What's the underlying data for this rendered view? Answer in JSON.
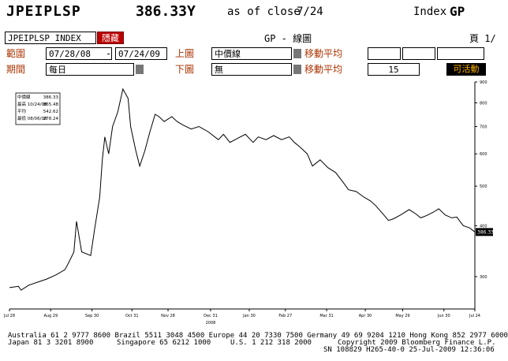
{
  "header": {
    "ticker": "JPEIPLSP",
    "price": "386.33Y",
    "as_of_label": "as of close",
    "date": "7/24",
    "index_label": "Index",
    "function_code": "GP"
  },
  "toolbar": {
    "security": "JPEIPLSP INDEX",
    "hide_label": "隱藏",
    "title": "GP - 線圖",
    "page": "頁 1/"
  },
  "controls": {
    "range_label": "範圍",
    "start_date": "07/28/08",
    "dash": "-",
    "end_date": "07/24/09",
    "upper_chart_label": "上圖",
    "upper_chart_value": "中價線",
    "moving_avg_label_1": "移動平均",
    "period_label": "期間",
    "period_value": "每日",
    "lower_chart_label": "下圖",
    "lower_chart_value": "無",
    "moving_avg_label_2": "移動平均",
    "moving_avg_value_2": "15",
    "activate_label": "可活動"
  },
  "legend": {
    "rows": [
      {
        "label": "中價線",
        "value": "386.33"
      },
      {
        "label": "最高 10/24/08",
        "value": "865.48"
      },
      {
        "label": "平均",
        "value": "542.62"
      },
      {
        "label": "最低 08/06/08",
        "value": "278.24"
      }
    ]
  },
  "chart_data": {
    "type": "line",
    "series": [
      {
        "values": [
          [
            "2008-07-28",
            282
          ],
          [
            "2008-08-04",
            284
          ],
          [
            "2008-08-06",
            278
          ],
          [
            "2008-08-12",
            286
          ],
          [
            "2008-08-19",
            291
          ],
          [
            "2008-08-26",
            296
          ],
          [
            "2008-09-02",
            303
          ],
          [
            "2008-09-09",
            312
          ],
          [
            "2008-09-12",
            325
          ],
          [
            "2008-09-16",
            345
          ],
          [
            "2008-09-18",
            410
          ],
          [
            "2008-09-22",
            345
          ],
          [
            "2008-09-29",
            338
          ],
          [
            "2008-10-02",
            392
          ],
          [
            "2008-10-06",
            470
          ],
          [
            "2008-10-08",
            580
          ],
          [
            "2008-10-10",
            660
          ],
          [
            "2008-10-13",
            600
          ],
          [
            "2008-10-16",
            700
          ],
          [
            "2008-10-20",
            760
          ],
          [
            "2008-10-24",
            865
          ],
          [
            "2008-10-28",
            820
          ],
          [
            "2008-10-30",
            700
          ],
          [
            "2008-11-03",
            610
          ],
          [
            "2008-11-06",
            560
          ],
          [
            "2008-11-10",
            610
          ],
          [
            "2008-11-14",
            680
          ],
          [
            "2008-11-18",
            750
          ],
          [
            "2008-11-21",
            740
          ],
          [
            "2008-11-25",
            720
          ],
          [
            "2008-12-01",
            740
          ],
          [
            "2008-12-05",
            720
          ],
          [
            "2008-12-10",
            705
          ],
          [
            "2008-12-16",
            690
          ],
          [
            "2008-12-22",
            700
          ],
          [
            "2008-12-29",
            680
          ],
          [
            "2009-01-06",
            650
          ],
          [
            "2009-01-10",
            670
          ],
          [
            "2009-01-15",
            640
          ],
          [
            "2009-01-21",
            655
          ],
          [
            "2009-01-27",
            670
          ],
          [
            "2009-02-02",
            640
          ],
          [
            "2009-02-06",
            660
          ],
          [
            "2009-02-12",
            650
          ],
          [
            "2009-02-18",
            665
          ],
          [
            "2009-02-24",
            650
          ],
          [
            "2009-03-02",
            660
          ],
          [
            "2009-03-06",
            640
          ],
          [
            "2009-03-10",
            625
          ],
          [
            "2009-03-16",
            600
          ],
          [
            "2009-03-20",
            560
          ],
          [
            "2009-03-26",
            580
          ],
          [
            "2009-04-01",
            555
          ],
          [
            "2009-04-07",
            540
          ],
          [
            "2009-04-13",
            510
          ],
          [
            "2009-04-17",
            490
          ],
          [
            "2009-04-23",
            485
          ],
          [
            "2009-04-29",
            470
          ],
          [
            "2009-05-04",
            460
          ],
          [
            "2009-05-08",
            448
          ],
          [
            "2009-05-13",
            430
          ],
          [
            "2009-05-18",
            412
          ],
          [
            "2009-05-22",
            416
          ],
          [
            "2009-05-28",
            426
          ],
          [
            "2009-06-03",
            438
          ],
          [
            "2009-06-08",
            428
          ],
          [
            "2009-06-12",
            418
          ],
          [
            "2009-06-17",
            424
          ],
          [
            "2009-06-22",
            432
          ],
          [
            "2009-06-26",
            440
          ],
          [
            "2009-07-01",
            425
          ],
          [
            "2009-07-06",
            418
          ],
          [
            "2009-07-10",
            420
          ],
          [
            "2009-07-15",
            400
          ],
          [
            "2009-07-20",
            395
          ],
          [
            "2009-07-24",
            386
          ]
        ]
      }
    ],
    "xlim": [
      "2008-07-28",
      "2009-07-24"
    ],
    "ylim": [
      250,
      900
    ],
    "y_scale": "log",
    "x_ticks": [
      {
        "date": "2008-07-28",
        "label": "Jul 28"
      },
      {
        "date": "2008-08-29",
        "label": "Aug 29"
      },
      {
        "date": "2008-09-30",
        "label": "Sep 30"
      },
      {
        "date": "2008-10-31",
        "label": "Oct 31"
      },
      {
        "date": "2008-11-28",
        "label": "Nov 28"
      },
      {
        "date": "2008-12-31",
        "label": "Dec 31"
      },
      {
        "date": "2009-01-30",
        "label": "Jan 30"
      },
      {
        "date": "2009-02-27",
        "label": "Feb 27"
      },
      {
        "date": "2009-03-31",
        "label": "Mar 31"
      },
      {
        "date": "2009-04-30",
        "label": "Apr 30"
      },
      {
        "date": "2009-05-29",
        "label": "May 29"
      },
      {
        "date": "2009-06-30",
        "label": "Jun 30"
      },
      {
        "date": "2009-07-24",
        "label": "Jul 24"
      }
    ],
    "year_label": "2008",
    "y_ticks": [
      {
        "v": 900,
        "label": "900"
      },
      {
        "v": 800,
        "label": "800"
      },
      {
        "v": 700,
        "label": "700"
      },
      {
        "v": 600,
        "label": "600"
      },
      {
        "v": 500,
        "label": "500"
      },
      {
        "v": 400,
        "label": "400"
      },
      {
        "v": 300,
        "label": "300"
      }
    ],
    "last_value_label": "386.33",
    "colors": {
      "line": "#000000",
      "tag_bg": "#000000",
      "tag_fg": "#ffffff"
    }
  },
  "footer": {
    "line1": "Australia 61 2 9777 8600 Brazil 5511 3048 4500 Europe 44 20 7330 7500 Germany 49 69 9204 1210 Hong Kong 852 2977 6000",
    "line2_left": "Japan 81 3 3201 8900",
    "line2_mid": "Singapore 65 6212 1000",
    "line2_us": "U.S. 1 212 318 2000",
    "line2_right": "Copyright 2009 Bloomberg Finance L.P.",
    "line3": "SN 108829 H265-40-0 25-Jul-2009 12:36:06"
  }
}
